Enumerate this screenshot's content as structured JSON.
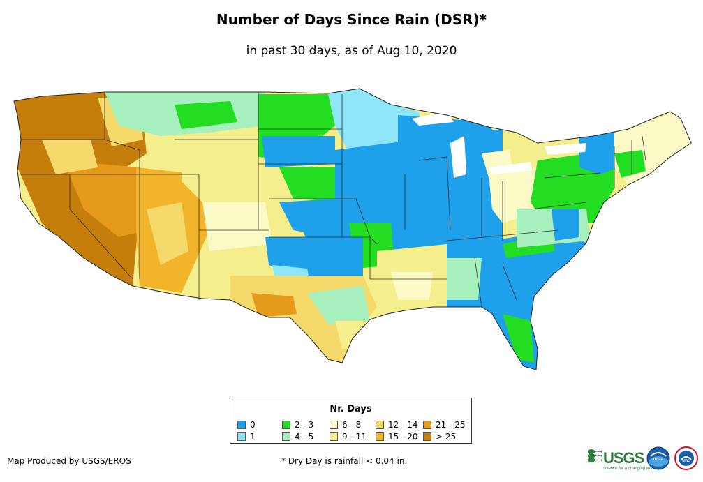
{
  "title": "Number of Days Since Rain (DSR)*",
  "subtitle": "in past 30 days, as of Aug 10, 2020",
  "legend": {
    "title": "Nr. Days",
    "items": [
      {
        "label": "0",
        "color": "#1fa0ea"
      },
      {
        "label": "1",
        "color": "#8ee5f7"
      },
      {
        "label": "2 - 3",
        "color": "#22dd22"
      },
      {
        "label": "4 - 5",
        "color": "#a6f0bd"
      },
      {
        "label": "6 - 8",
        "color": "#fbf9c6"
      },
      {
        "label": "9 - 11",
        "color": "#f5ee8c"
      },
      {
        "label": "12 - 14",
        "color": "#f5d96b"
      },
      {
        "label": "15 - 20",
        "color": "#f2b42a"
      },
      {
        "label": "21 - 25",
        "color": "#e69a1b"
      },
      {
        "label": "> 25",
        "color": "#c57d0c"
      }
    ]
  },
  "footer": {
    "credit": "Map Produced by USGS/EROS",
    "footnote": "* Dry Day is rainfall < 0.04 in."
  },
  "logos": {
    "usgs_text": "USGS",
    "usgs_tagline": "science for a changing world",
    "noaa_text": "noaa",
    "nws_text": "NWS"
  }
}
